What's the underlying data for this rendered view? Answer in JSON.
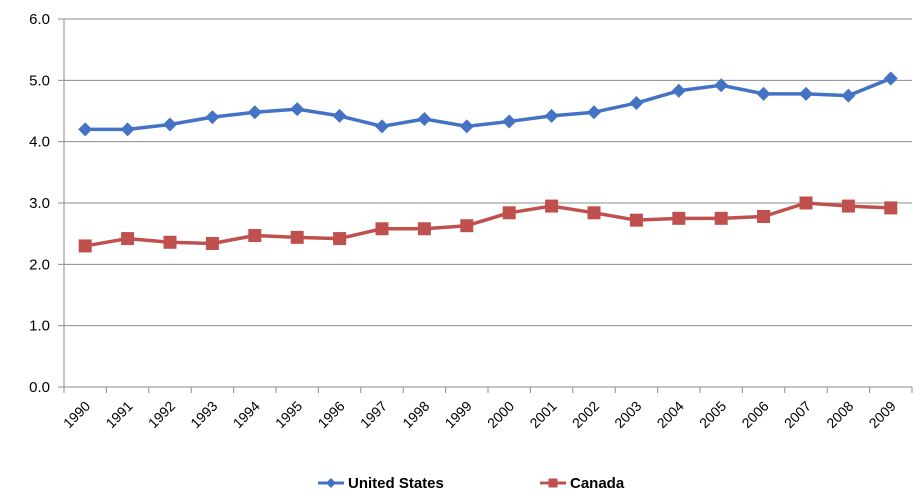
{
  "chart_data": {
    "type": "line",
    "title": "",
    "xlabel": "",
    "ylabel": "",
    "categories": [
      "1990",
      "1991",
      "1992",
      "1993",
      "1994",
      "1995",
      "1996",
      "1997",
      "1998",
      "1999",
      "2000",
      "2001",
      "2002",
      "2003",
      "2004",
      "2005",
      "2006",
      "2007",
      "2008",
      "2009"
    ],
    "ylim": [
      0,
      6
    ],
    "y_ticks": [
      "0.0",
      "1.0",
      "2.0",
      "3.0",
      "4.0",
      "5.0",
      "6.0"
    ],
    "grid": true,
    "legend_position": "bottom",
    "series": [
      {
        "name": "United States",
        "color": "#4472C4",
        "marker": "diamond",
        "values": [
          4.2,
          4.2,
          4.28,
          4.4,
          4.48,
          4.53,
          4.42,
          4.25,
          4.37,
          4.25,
          4.33,
          4.42,
          4.48,
          4.63,
          4.83,
          4.92,
          4.78,
          4.78,
          4.75,
          5.03
        ]
      },
      {
        "name": "Canada",
        "color": "#C0504D",
        "marker": "square",
        "values": [
          2.3,
          2.42,
          2.36,
          2.34,
          2.47,
          2.44,
          2.42,
          2.58,
          2.58,
          2.63,
          2.84,
          2.95,
          2.84,
          2.72,
          2.75,
          2.75,
          2.78,
          3.0,
          2.95,
          2.92
        ]
      }
    ]
  }
}
